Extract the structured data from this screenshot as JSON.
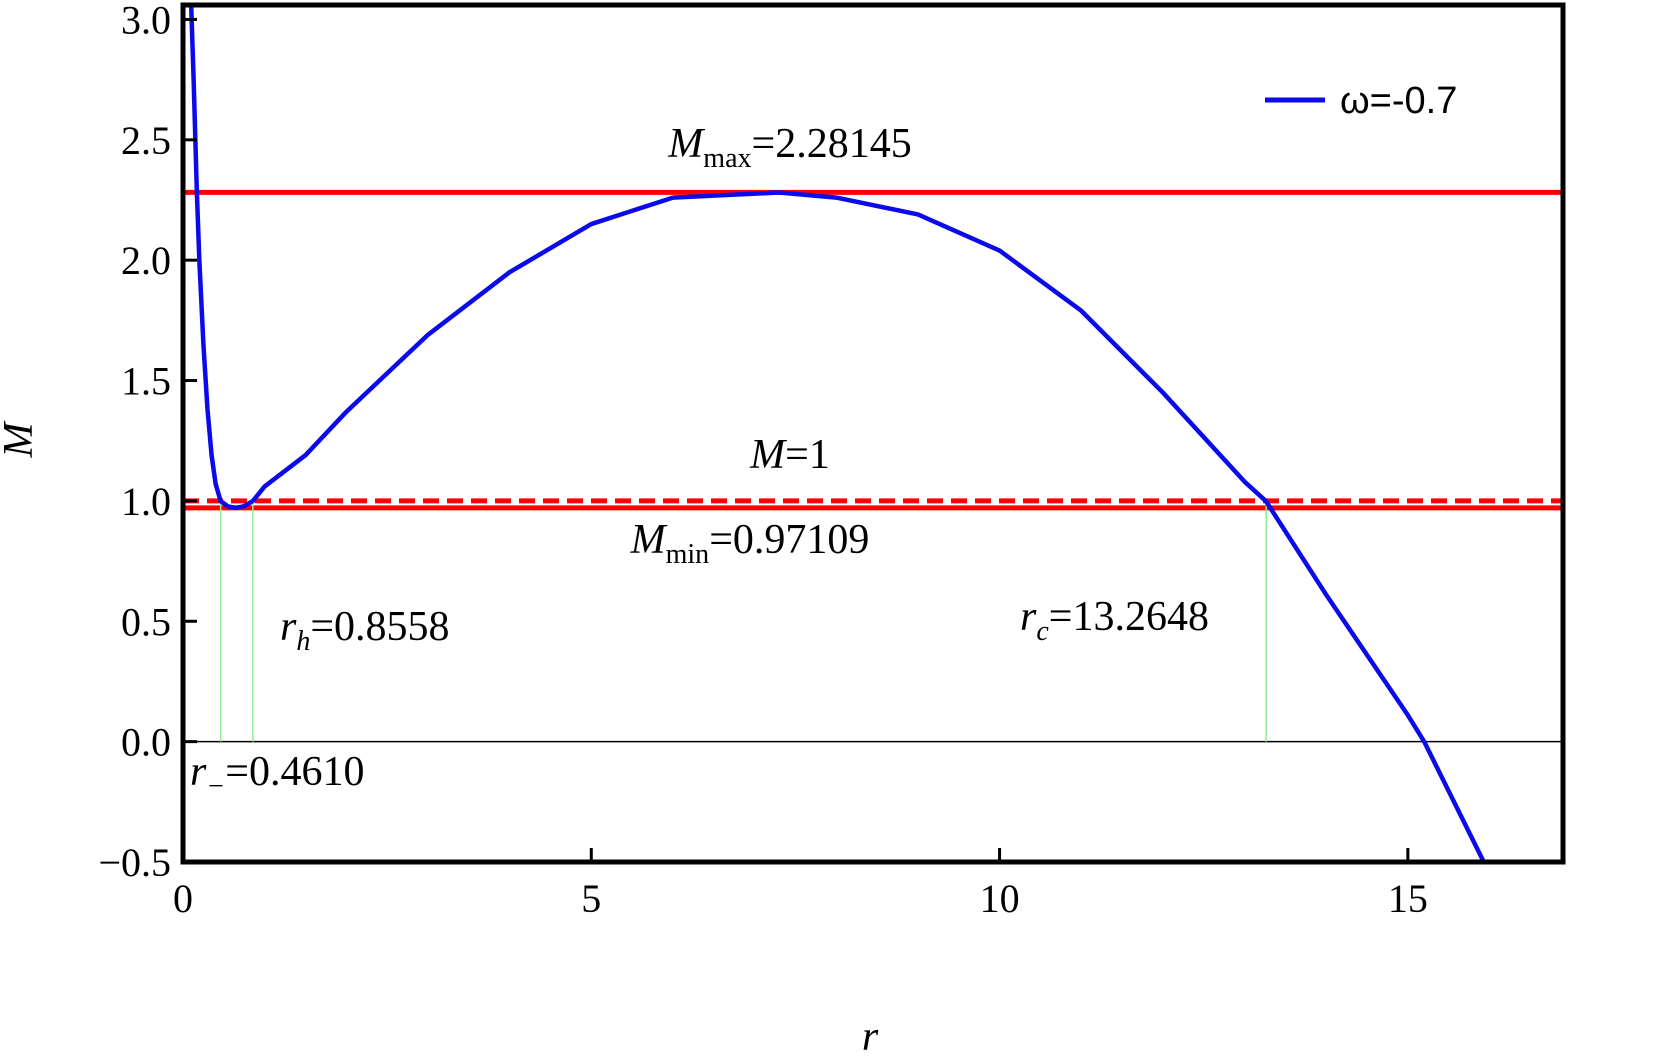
{
  "chart_data": {
    "type": "line",
    "x_label": "r",
    "y_label": "M",
    "xlim": [
      0,
      16.9
    ],
    "ylim": [
      -0.5,
      3.06
    ],
    "xticks": [
      0,
      5,
      10,
      15
    ],
    "yticks": [
      {
        "value": -0.5,
        "label": "−0.5"
      },
      {
        "value": 0,
        "label": "0.0"
      },
      {
        "value": 0.5,
        "label": "0.5"
      },
      {
        "value": 1,
        "label": "1.0"
      },
      {
        "value": 1.5,
        "label": "1.5"
      },
      {
        "value": 2,
        "label": "2.0"
      },
      {
        "value": 2.5,
        "label": "2.5"
      },
      {
        "value": 3,
        "label": "3.0"
      }
    ],
    "legend": "upper right",
    "series": [
      {
        "name": "ω=-0.7",
        "color": "#0a0aeb",
        "x": [
          0.1,
          0.13,
          0.17,
          0.2,
          0.25,
          0.3,
          0.35,
          0.4,
          0.46,
          0.55,
          0.65,
          0.75,
          0.856,
          1.0,
          1.5,
          2,
          3,
          4,
          5,
          6,
          7.3,
          8,
          9,
          10,
          11,
          12,
          13,
          13.26,
          14,
          15,
          15.2,
          15.93
        ],
        "values": [
          3.06,
          2.75,
          2.28,
          2.0,
          1.65,
          1.38,
          1.19,
          1.07,
          1.0,
          0.977,
          0.971,
          0.978,
          1.0,
          1.06,
          1.19,
          1.37,
          1.69,
          1.95,
          2.15,
          2.26,
          2.281,
          2.26,
          2.19,
          2.04,
          1.79,
          1.45,
          1.08,
          1.0,
          0.61,
          0.11,
          0,
          -0.5
        ]
      }
    ],
    "hlines": [
      {
        "value": 2.28145,
        "color": "#ff0000",
        "style": "solid",
        "symbol": "M",
        "subscript": "max",
        "label": "=2.28145"
      },
      {
        "value": 1,
        "color": "#ff0000",
        "style": "dashed",
        "symbol": "M",
        "label": "=1"
      },
      {
        "value": 0.97109,
        "color": "#ff0000",
        "style": "solid",
        "symbol": "M",
        "subscript": "min",
        "label": "=0.97109"
      },
      {
        "value": 0,
        "color": "#000000",
        "style": "thin"
      }
    ],
    "vlines": [
      {
        "value": 0.461,
        "color": "#90ee90",
        "symbol": "r",
        "subscript": "−",
        "label": "=0.4610"
      },
      {
        "value": 0.8558,
        "color": "#90ee90",
        "symbol": "r",
        "subscript": "h",
        "label": "=0.8558"
      },
      {
        "value": 13.2648,
        "color": "#90ee90",
        "symbol": "r",
        "subscript": "c",
        "label": "=13.2648"
      }
    ]
  }
}
